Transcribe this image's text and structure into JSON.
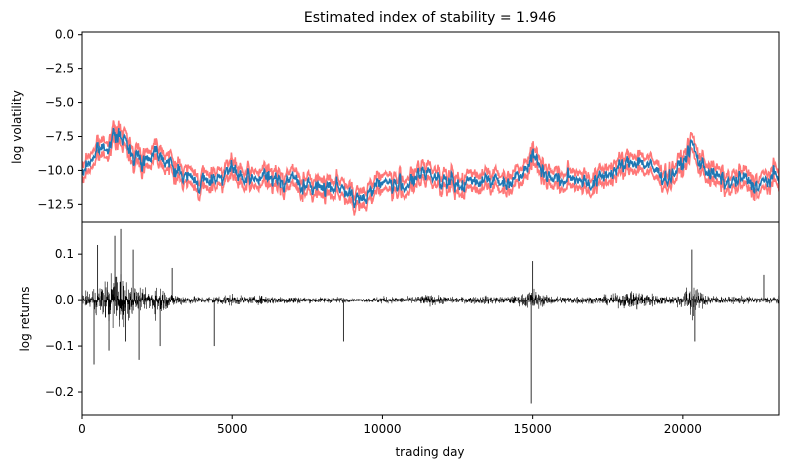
{
  "chart_data": [
    {
      "type": "line",
      "title": "Estimated index of stability = 1.946",
      "xlabel": "",
      "ylabel": "log volatility",
      "xlim": [
        0,
        23200
      ],
      "ylim": [
        0.2,
        -13.8
      ],
      "yticks": [
        0.0,
        -2.5,
        -5.0,
        -7.5,
        -10.0,
        -12.5
      ],
      "ytick_labels": [
        "0.0",
        "−2.5",
        "−5.0",
        "−7.5",
        "−10.0",
        "−12.5"
      ],
      "series": [
        {
          "name": "estimated log volatility",
          "color": "#1f77b4",
          "x": [
            0,
            150,
            500,
            800,
            1200,
            1500,
            2000,
            2500,
            3000,
            3500,
            4000,
            4500,
            5000,
            5500,
            6000,
            6500,
            7000,
            7500,
            8000,
            8500,
            8800,
            9100,
            9500,
            10000,
            10500,
            11000,
            11500,
            12000,
            12500,
            13000,
            13500,
            14000,
            14500,
            15000,
            15500,
            16000,
            16500,
            17000,
            17500,
            18000,
            18500,
            19000,
            19500,
            20000,
            20300,
            20500,
            21000,
            21500,
            22000,
            22500,
            23000,
            23200
          ],
          "y": [
            -10.5,
            -9.6,
            -8.6,
            -8.2,
            -7.3,
            -8.2,
            -9.4,
            -8.4,
            -9.8,
            -10.5,
            -11.0,
            -10.4,
            -10.0,
            -10.9,
            -10.4,
            -10.8,
            -10.6,
            -11.3,
            -11.2,
            -11.0,
            -11.5,
            -12.5,
            -11.6,
            -10.7,
            -11.2,
            -10.8,
            -10.1,
            -10.6,
            -11.2,
            -10.8,
            -10.5,
            -11.0,
            -10.4,
            -8.9,
            -10.4,
            -10.8,
            -10.5,
            -11.0,
            -10.2,
            -9.7,
            -9.2,
            -9.9,
            -10.6,
            -9.5,
            -8.0,
            -9.3,
            -10.3,
            -11.0,
            -10.6,
            -11.2,
            -10.5,
            -10.5
          ]
        },
        {
          "name": "confidence band",
          "color": "#ff5555",
          "offset": 0.55
        }
      ]
    },
    {
      "type": "line",
      "title": "",
      "xlabel": "trading day",
      "ylabel": "log returns",
      "xlim": [
        0,
        23200
      ],
      "ylim": [
        -0.25,
        0.17
      ],
      "xticks": [
        0,
        5000,
        10000,
        15000,
        20000
      ],
      "xtick_labels": [
        "0",
        "5000",
        "10000",
        "15000",
        "20000"
      ],
      "yticks": [
        0.1,
        0.0,
        -0.1,
        -0.2
      ],
      "ytick_labels": [
        "0.1",
        "0.0",
        "−0.1",
        "−0.2"
      ],
      "series": [
        {
          "name": "log returns",
          "color": "#000000",
          "spikes": [
            {
              "x": 400,
              "y": -0.14
            },
            {
              "x": 520,
              "y": 0.12
            },
            {
              "x": 900,
              "y": -0.11
            },
            {
              "x": 1100,
              "y": 0.14
            },
            {
              "x": 1300,
              "y": 0.155
            },
            {
              "x": 1450,
              "y": -0.09
            },
            {
              "x": 1700,
              "y": 0.11
            },
            {
              "x": 1900,
              "y": -0.13
            },
            {
              "x": 2600,
              "y": -0.1
            },
            {
              "x": 3000,
              "y": 0.07
            },
            {
              "x": 4400,
              "y": -0.1
            },
            {
              "x": 8700,
              "y": -0.09
            },
            {
              "x": 14950,
              "y": -0.225
            },
            {
              "x": 15000,
              "y": 0.085
            },
            {
              "x": 20300,
              "y": 0.11
            },
            {
              "x": 20400,
              "y": -0.09
            },
            {
              "x": 22700,
              "y": 0.055
            }
          ]
        }
      ]
    }
  ]
}
